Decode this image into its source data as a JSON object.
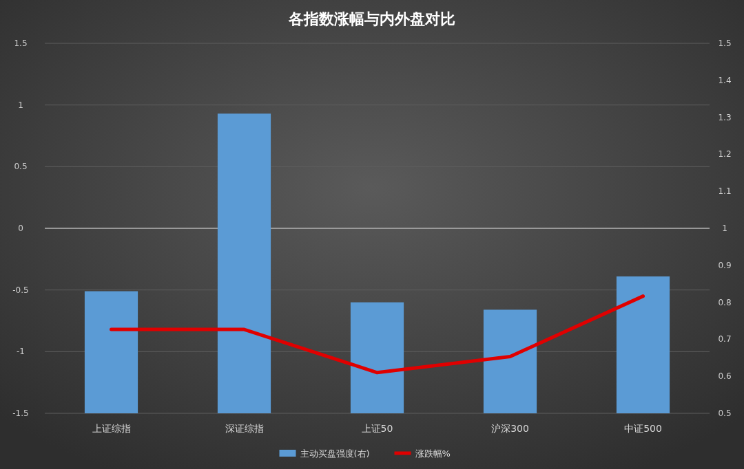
{
  "chart_data": {
    "type": "bar",
    "title": "各指数涨幅与内外盘对比",
    "categories": [
      "上证综指",
      "深证综指",
      "上证50",
      "沪深300",
      "中证500"
    ],
    "series": [
      {
        "name": "主动买盘强度(右)",
        "axis": "y2",
        "color": "#5b9bd5",
        "values": [
          0.83,
          1.31,
          0.8,
          0.78,
          0.87
        ]
      },
      {
        "name": "涨跌幅%",
        "type": "line",
        "axis": "y",
        "color": "#e00000",
        "values": [
          -0.82,
          -0.82,
          -1.17,
          -1.04,
          -0.55
        ]
      }
    ],
    "ylim": [
      -1.5,
      1.5
    ],
    "yticks": [
      -1.5,
      -1,
      -0.5,
      0,
      0.5,
      1,
      1.5
    ],
    "y2lim": [
      0.5,
      1.5
    ],
    "y2ticks": [
      0.5,
      0.6,
      0.7,
      0.8,
      0.9,
      1,
      1.1,
      1.2,
      1.3,
      1.4,
      1.5
    ],
    "ref_lines": [
      {
        "axis": "y",
        "value": 0,
        "color": "#b0b0b0"
      }
    ],
    "grid": "y",
    "legend": "bottom",
    "marker": "none",
    "line_style": "solid"
  }
}
